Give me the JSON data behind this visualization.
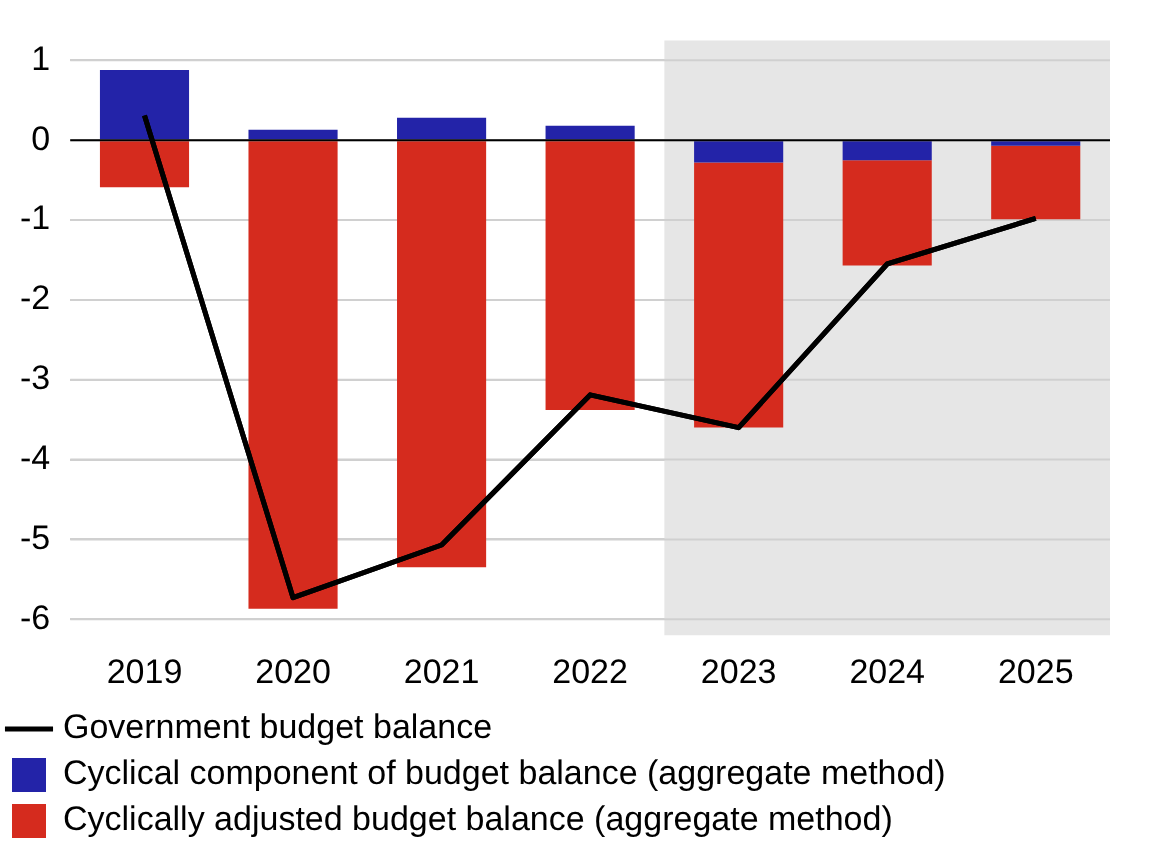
{
  "chart_data": {
    "type": "bar",
    "stacked": true,
    "categories": [
      "2019",
      "2020",
      "2021",
      "2022",
      "2023",
      "2024",
      "2025"
    ],
    "series": [
      {
        "name": "Government budget balance",
        "type": "line",
        "color": "#000000",
        "values": [
          0.31,
          -5.73,
          -5.07,
          -3.19,
          -3.6,
          -1.55,
          -0.98
        ]
      },
      {
        "name": "Cyclical component of budget balance (aggregate method)",
        "color": "#2323a8",
        "values": [
          0.88,
          0.13,
          0.28,
          0.18,
          -0.28,
          -0.25,
          -0.07
        ]
      },
      {
        "name": "Cyclically adjusted budget balance (aggregate method)",
        "color": "#d52b1e",
        "values": [
          -0.59,
          -5.87,
          -5.35,
          -3.38,
          -3.32,
          -1.32,
          -0.92
        ]
      }
    ],
    "ylim": [
      -6.2,
      1.25
    ],
    "yticks": [
      -6,
      -5,
      -4,
      -3,
      -2,
      -1,
      0,
      1
    ],
    "grid": "y",
    "legend": "bottom",
    "marker": "none",
    "ref_lines": [
      {
        "axis": "y",
        "value": 0,
        "color": "#000000"
      }
    ],
    "bands": [
      {
        "axis": "x",
        "from": "2023",
        "to": "2025",
        "color": "#e6e6e6"
      }
    ]
  }
}
